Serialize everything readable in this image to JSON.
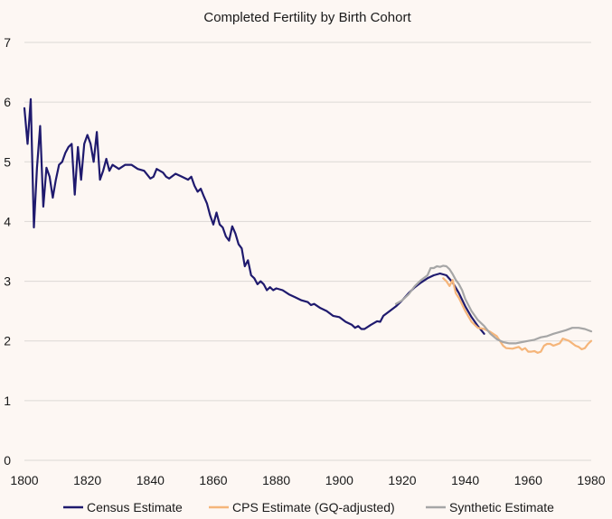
{
  "chart_data": {
    "type": "line",
    "title": "Completed Fertility by Birth Cohort",
    "xlabel": "",
    "ylabel": "",
    "xlim": [
      1800,
      1980
    ],
    "ylim": [
      0,
      7
    ],
    "xticks": [
      "1800",
      "1820",
      "1840",
      "1860",
      "1880",
      "1900",
      "1920",
      "1940",
      "1960",
      "1980"
    ],
    "yticks": [
      "0",
      "1",
      "2",
      "3",
      "4",
      "5",
      "6",
      "7"
    ],
    "grid": "horizontal",
    "legend_position": "bottom",
    "series": [
      {
        "name": "Census Estimate",
        "color": "#1f1a6e",
        "points": [
          [
            1800,
            5.9
          ],
          [
            1801,
            5.3
          ],
          [
            1802,
            6.05
          ],
          [
            1803,
            3.9
          ],
          [
            1804,
            4.9
          ],
          [
            1805,
            5.6
          ],
          [
            1806,
            4.25
          ],
          [
            1807,
            4.9
          ],
          [
            1808,
            4.75
          ],
          [
            1809,
            4.4
          ],
          [
            1810,
            4.7
          ],
          [
            1811,
            4.95
          ],
          [
            1812,
            5.0
          ],
          [
            1813,
            5.15
          ],
          [
            1814,
            5.25
          ],
          [
            1815,
            5.3
          ],
          [
            1816,
            4.45
          ],
          [
            1817,
            5.25
          ],
          [
            1818,
            4.7
          ],
          [
            1819,
            5.3
          ],
          [
            1820,
            5.45
          ],
          [
            1821,
            5.3
          ],
          [
            1822,
            5.0
          ],
          [
            1823,
            5.5
          ],
          [
            1824,
            4.7
          ],
          [
            1825,
            4.85
          ],
          [
            1826,
            5.05
          ],
          [
            1827,
            4.85
          ],
          [
            1828,
            4.95
          ],
          [
            1830,
            4.88
          ],
          [
            1832,
            4.95
          ],
          [
            1834,
            4.95
          ],
          [
            1836,
            4.88
          ],
          [
            1838,
            4.85
          ],
          [
            1840,
            4.72
          ],
          [
            1841,
            4.75
          ],
          [
            1842,
            4.88
          ],
          [
            1844,
            4.82
          ],
          [
            1845,
            4.75
          ],
          [
            1846,
            4.72
          ],
          [
            1848,
            4.8
          ],
          [
            1850,
            4.75
          ],
          [
            1852,
            4.7
          ],
          [
            1853,
            4.75
          ],
          [
            1854,
            4.6
          ],
          [
            1855,
            4.5
          ],
          [
            1856,
            4.55
          ],
          [
            1857,
            4.42
          ],
          [
            1858,
            4.3
          ],
          [
            1859,
            4.1
          ],
          [
            1860,
            3.95
          ],
          [
            1861,
            4.15
          ],
          [
            1862,
            3.95
          ],
          [
            1863,
            3.9
          ],
          [
            1864,
            3.75
          ],
          [
            1865,
            3.68
          ],
          [
            1866,
            3.92
          ],
          [
            1867,
            3.8
          ],
          [
            1868,
            3.62
          ],
          [
            1869,
            3.55
          ],
          [
            1870,
            3.25
          ],
          [
            1871,
            3.35
          ],
          [
            1872,
            3.1
          ],
          [
            1873,
            3.05
          ],
          [
            1874,
            2.95
          ],
          [
            1875,
            3.0
          ],
          [
            1876,
            2.95
          ],
          [
            1877,
            2.85
          ],
          [
            1878,
            2.9
          ],
          [
            1879,
            2.85
          ],
          [
            1880,
            2.88
          ],
          [
            1882,
            2.85
          ],
          [
            1884,
            2.78
          ],
          [
            1886,
            2.73
          ],
          [
            1888,
            2.68
          ],
          [
            1890,
            2.65
          ],
          [
            1891,
            2.6
          ],
          [
            1892,
            2.62
          ],
          [
            1894,
            2.55
          ],
          [
            1896,
            2.5
          ],
          [
            1898,
            2.42
          ],
          [
            1900,
            2.4
          ],
          [
            1902,
            2.32
          ],
          [
            1904,
            2.27
          ],
          [
            1905,
            2.22
          ],
          [
            1906,
            2.25
          ],
          [
            1907,
            2.2
          ],
          [
            1908,
            2.2
          ],
          [
            1910,
            2.27
          ],
          [
            1912,
            2.33
          ],
          [
            1913,
            2.32
          ],
          [
            1914,
            2.42
          ],
          [
            1916,
            2.5
          ],
          [
            1918,
            2.58
          ],
          [
            1920,
            2.68
          ],
          [
            1922,
            2.8
          ],
          [
            1924,
            2.9
          ],
          [
            1926,
            2.98
          ],
          [
            1928,
            3.05
          ],
          [
            1930,
            3.1
          ],
          [
            1932,
            3.13
          ],
          [
            1934,
            3.1
          ],
          [
            1936,
            2.98
          ],
          [
            1938,
            2.8
          ],
          [
            1940,
            2.58
          ],
          [
            1942,
            2.4
          ],
          [
            1944,
            2.25
          ],
          [
            1946,
            2.12
          ]
        ]
      },
      {
        "name": "CPS Estimate (GQ-adjusted)",
        "color": "#f5b57a",
        "points": [
          [
            1933,
            3.05
          ],
          [
            1934,
            3.0
          ],
          [
            1935,
            2.92
          ],
          [
            1936,
            3.02
          ],
          [
            1937,
            2.8
          ],
          [
            1938,
            2.72
          ],
          [
            1940,
            2.5
          ],
          [
            1942,
            2.32
          ],
          [
            1944,
            2.22
          ],
          [
            1946,
            2.2
          ],
          [
            1948,
            2.15
          ],
          [
            1950,
            2.08
          ],
          [
            1951,
            2.0
          ],
          [
            1952,
            1.92
          ],
          [
            1953,
            1.88
          ],
          [
            1955,
            1.87
          ],
          [
            1957,
            1.9
          ],
          [
            1958,
            1.85
          ],
          [
            1959,
            1.88
          ],
          [
            1960,
            1.82
          ],
          [
            1961,
            1.82
          ],
          [
            1962,
            1.83
          ],
          [
            1963,
            1.8
          ],
          [
            1964,
            1.82
          ],
          [
            1965,
            1.92
          ],
          [
            1966,
            1.95
          ],
          [
            1967,
            1.95
          ],
          [
            1968,
            1.92
          ],
          [
            1969,
            1.94
          ],
          [
            1970,
            1.96
          ],
          [
            1971,
            2.04
          ],
          [
            1972,
            2.02
          ],
          [
            1973,
            2.0
          ],
          [
            1974,
            1.96
          ],
          [
            1975,
            1.92
          ],
          [
            1976,
            1.9
          ],
          [
            1977,
            1.86
          ],
          [
            1978,
            1.88
          ],
          [
            1979,
            1.95
          ],
          [
            1980,
            2.0
          ]
        ]
      },
      {
        "name": "Synthetic Estimate",
        "color": "#a6a6a6",
        "points": [
          [
            1918,
            2.62
          ],
          [
            1920,
            2.68
          ],
          [
            1922,
            2.78
          ],
          [
            1924,
            2.92
          ],
          [
            1926,
            3.02
          ],
          [
            1928,
            3.1
          ],
          [
            1929,
            3.22
          ],
          [
            1930,
            3.22
          ],
          [
            1931,
            3.25
          ],
          [
            1932,
            3.24
          ],
          [
            1933,
            3.26
          ],
          [
            1934,
            3.25
          ],
          [
            1935,
            3.2
          ],
          [
            1936,
            3.12
          ],
          [
            1937,
            3.02
          ],
          [
            1938,
            2.95
          ],
          [
            1939,
            2.85
          ],
          [
            1940,
            2.7
          ],
          [
            1942,
            2.5
          ],
          [
            1944,
            2.35
          ],
          [
            1946,
            2.25
          ],
          [
            1948,
            2.12
          ],
          [
            1950,
            2.03
          ],
          [
            1952,
            1.98
          ],
          [
            1954,
            1.96
          ],
          [
            1956,
            1.96
          ],
          [
            1958,
            1.98
          ],
          [
            1960,
            2.0
          ],
          [
            1962,
            2.02
          ],
          [
            1964,
            2.06
          ],
          [
            1966,
            2.08
          ],
          [
            1968,
            2.12
          ],
          [
            1970,
            2.15
          ],
          [
            1972,
            2.18
          ],
          [
            1974,
            2.22
          ],
          [
            1976,
            2.22
          ],
          [
            1978,
            2.2
          ],
          [
            1980,
            2.16
          ]
        ]
      }
    ]
  }
}
